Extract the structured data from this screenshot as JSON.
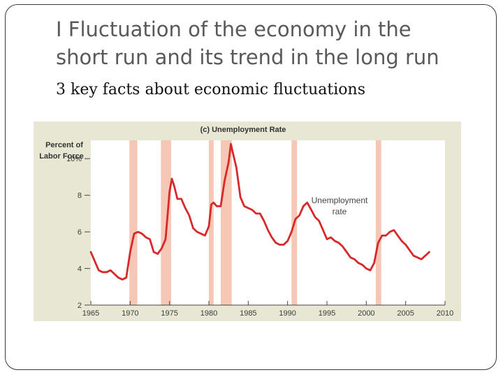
{
  "slide": {
    "title_line1": "I Fluctuation of the economy in the",
    "title_line2": "short run and its trend in the long run",
    "subtitle": "3 key facts about economic fluctuations"
  },
  "colors": {
    "line": "#d7282a",
    "recession": "#f6c7b4",
    "plot_bg": "#ffffff",
    "panel_bg": "#e7e7d3"
  },
  "chart_data": {
    "type": "line",
    "title": "(c) Unemployment Rate",
    "ylabel_line1": "Percent of",
    "ylabel_line2": "Labor Force",
    "xlabel": "",
    "xlim": [
      1965,
      2010
    ],
    "ylim": [
      2,
      11
    ],
    "x_ticks": [
      1965,
      1970,
      1975,
      1980,
      1985,
      1990,
      1995,
      2000,
      2005,
      2010
    ],
    "x_tick_labels": [
      "1965",
      "1970",
      "1975",
      "1980",
      "1985",
      "1990",
      "1995",
      "2000",
      "2005",
      "2010"
    ],
    "y_ticks": [
      2,
      4,
      6,
      8,
      10
    ],
    "y_tick_labels": [
      "2",
      "4",
      "6",
      "8",
      "10%"
    ],
    "recessions": [
      [
        1969.9,
        1970.9
      ],
      [
        1973.9,
        1975.2
      ],
      [
        1980.0,
        1980.6
      ],
      [
        1981.5,
        1982.9
      ],
      [
        1990.5,
        1991.2
      ],
      [
        2001.2,
        2001.9
      ]
    ],
    "annotation_line1": "Unemployment",
    "annotation_line2": "rate",
    "series": [
      {
        "name": "Unemployment rate",
        "x": [
          1965.0,
          1965.5,
          1966.0,
          1966.5,
          1967.0,
          1967.5,
          1968.0,
          1968.5,
          1969.0,
          1969.5,
          1970.0,
          1970.5,
          1971.0,
          1971.5,
          1972.0,
          1972.5,
          1973.0,
          1973.5,
          1974.0,
          1974.5,
          1975.0,
          1975.3,
          1975.6,
          1976.0,
          1976.5,
          1977.0,
          1977.5,
          1978.0,
          1978.5,
          1979.0,
          1979.5,
          1980.0,
          1980.3,
          1980.6,
          1981.0,
          1981.5,
          1982.0,
          1982.5,
          1982.8,
          1983.0,
          1983.5,
          1984.0,
          1984.5,
          1985.0,
          1985.5,
          1986.0,
          1986.5,
          1987.0,
          1987.5,
          1988.0,
          1988.5,
          1989.0,
          1989.5,
          1990.0,
          1990.5,
          1991.0,
          1991.5,
          1992.0,
          1992.5,
          1993.0,
          1993.5,
          1994.0,
          1994.5,
          1995.0,
          1995.5,
          1996.0,
          1996.5,
          1997.0,
          1997.5,
          1998.0,
          1998.5,
          1999.0,
          1999.5,
          2000.0,
          2000.5,
          2001.0,
          2001.5,
          2002.0,
          2002.5,
          2003.0,
          2003.5,
          2004.0,
          2004.5,
          2005.0,
          2005.5,
          2006.0,
          2006.5,
          2007.0,
          2007.5,
          2008.0
        ],
        "values": [
          4.9,
          4.4,
          3.9,
          3.8,
          3.8,
          3.9,
          3.7,
          3.5,
          3.4,
          3.5,
          4.9,
          5.9,
          6.0,
          5.9,
          5.7,
          5.6,
          4.9,
          4.8,
          5.1,
          5.6,
          8.2,
          8.9,
          8.5,
          7.8,
          7.8,
          7.3,
          6.9,
          6.2,
          6.0,
          5.9,
          5.8,
          6.3,
          7.5,
          7.6,
          7.4,
          7.4,
          8.8,
          9.8,
          10.8,
          10.4,
          9.5,
          7.9,
          7.4,
          7.3,
          7.2,
          7.0,
          7.0,
          6.6,
          6.1,
          5.7,
          5.4,
          5.3,
          5.3,
          5.5,
          6.0,
          6.7,
          6.9,
          7.4,
          7.6,
          7.2,
          6.8,
          6.6,
          6.1,
          5.6,
          5.7,
          5.5,
          5.4,
          5.2,
          4.9,
          4.6,
          4.5,
          4.3,
          4.2,
          4.0,
          3.9,
          4.3,
          5.4,
          5.8,
          5.8,
          6.0,
          6.1,
          5.8,
          5.5,
          5.3,
          5.0,
          4.7,
          4.6,
          4.5,
          4.7,
          4.9
        ]
      }
    ]
  }
}
